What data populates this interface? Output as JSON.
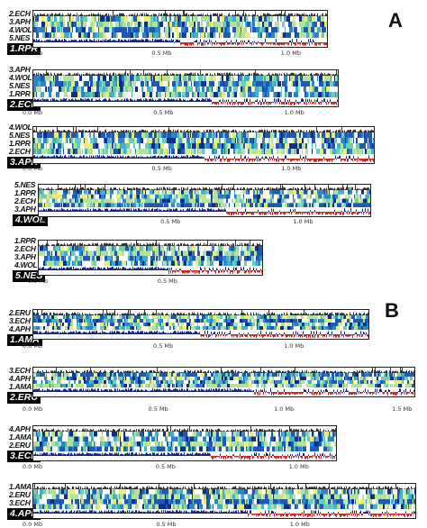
{
  "panels": [
    {
      "letter": "A"
    },
    {
      "letter": "B"
    }
  ],
  "tracks": [
    {
      "labels": [
        "2.ECH",
        "3.APH",
        "4.WOL",
        "5.NES"
      ],
      "ref": "1.RPR",
      "ticks": [
        "0.0 Mb",
        "0.5 Mb",
        "1.0 Mb"
      ]
    },
    {
      "labels": [
        "3.APH",
        "4.WOL",
        "5.NES",
        "1.RPR"
      ],
      "ref": "2.ECH",
      "ticks": [
        "0.0 Mb",
        "0.5 Mb",
        "1.0 Mb"
      ]
    },
    {
      "labels": [
        "4.WOL",
        "5.NES",
        "1.RPR",
        "2.ECH"
      ],
      "ref": "3.APH",
      "ticks": [
        "0.0 Mb",
        "0.5 Mb",
        "1.0 Mb"
      ]
    },
    {
      "labels": [
        "5.NES",
        "1.RPR",
        "2.ECH",
        "3.APH"
      ],
      "ref": "4.WOL",
      "ticks": [
        "0.0 Mb",
        "0.5 Mb",
        "1.0 Mb"
      ]
    },
    {
      "labels": [
        "1.RPR",
        "2.ECH",
        "3.APH",
        "4.WOL"
      ],
      "ref": "5.NES",
      "ticks": [
        "0.0 Mb",
        "0.5 Mb"
      ]
    },
    {
      "labels": [
        "2.ERU",
        "3.ECH",
        "4.APH"
      ],
      "ref": "1.AMA",
      "ticks": [
        "0.0 Mb",
        "0.5 Mb",
        "1.0 Mb"
      ]
    },
    {
      "labels": [
        "3.ECH",
        "4.APH",
        "1.AMA"
      ],
      "ref": "2.ERU",
      "ticks": [
        "0.0 Mb",
        "0.5 Mb",
        "1.0 Mb",
        "1.5 Mb"
      ]
    },
    {
      "labels": [
        "4.APH",
        "1.AMA",
        "2.ERU"
      ],
      "ref": "3.ECH",
      "ticks": [
        "0.0 Mb",
        "0.5 Mb",
        "1.0 Mb"
      ]
    },
    {
      "labels": [
        "1.AMA",
        "2.ERU",
        "3.ECH"
      ],
      "ref": "4.APH",
      "ticks": [
        "0.0 Mb",
        "0.5 Mb",
        "1.0 Mb"
      ]
    }
  ],
  "colors": {
    "heat": [
      "#0b2f8a",
      "#1f58b5",
      "#2b86c9",
      "#3fb1c8",
      "#6ccfb5",
      "#b5e29a",
      "#e6ee7c",
      "#ffffff"
    ],
    "gc_positive": "#1a237e",
    "gc_negative": "#c62828",
    "border": "#222222"
  }
}
